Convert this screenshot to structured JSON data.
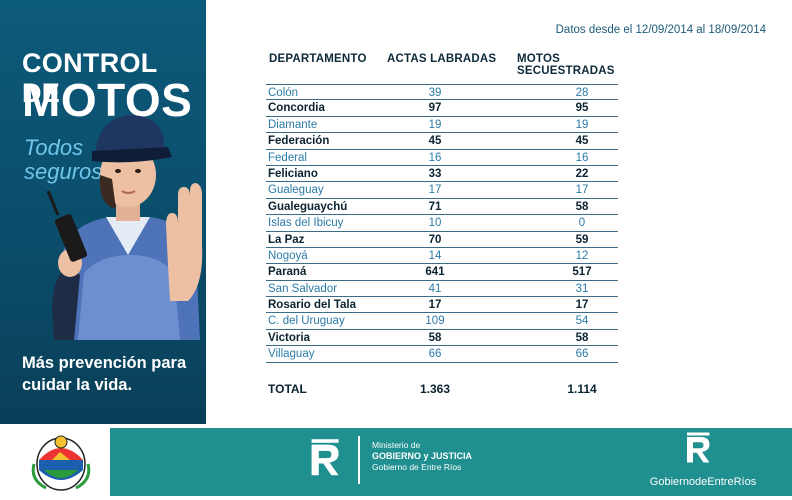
{
  "left_panel": {
    "title_line1": "CONTROL DE",
    "title_line2": "MOTOS",
    "slogan": "Todos seguros",
    "bottom_text": "Más prevención para cuidar la vida."
  },
  "date_range": "Datos desde el 12/09/2014 al 18/09/2014",
  "table": {
    "columns": [
      "DEPARTAMENTO",
      "ACTAS LABRADAS",
      "MOTOS SECUESTRADAS"
    ],
    "rows": [
      {
        "departamento": "Colón",
        "actas": "39",
        "motos": "28"
      },
      {
        "departamento": "Concordia",
        "actas": "97",
        "motos": "95"
      },
      {
        "departamento": "Diamante",
        "actas": "19",
        "motos": "19"
      },
      {
        "departamento": "Federación",
        "actas": "45",
        "motos": "45"
      },
      {
        "departamento": "Federal",
        "actas": "16",
        "motos": "16"
      },
      {
        "departamento": "Feliciano",
        "actas": "33",
        "motos": "22"
      },
      {
        "departamento": "Gualeguay",
        "actas": "17",
        "motos": "17"
      },
      {
        "departamento": "Gualeguaychú",
        "actas": "71",
        "motos": "58"
      },
      {
        "departamento": "Islas del Ibicuy",
        "actas": "10",
        "motos": "0"
      },
      {
        "departamento": "La Paz",
        "actas": "70",
        "motos": "59"
      },
      {
        "departamento": "Nogoyá",
        "actas": "14",
        "motos": "12"
      },
      {
        "departamento": "Paraná",
        "actas": "641",
        "motos": "517"
      },
      {
        "departamento": "San Salvador",
        "actas": "41",
        "motos": "31"
      },
      {
        "departamento": "Rosario del Tala",
        "actas": "17",
        "motos": "17"
      },
      {
        "departamento": "C. del Uruguay",
        "actas": "109",
        "motos": "54"
      },
      {
        "departamento": "Victoria",
        "actas": "58",
        "motos": "58"
      },
      {
        "departamento": "Villaguay",
        "actas": "66",
        "motos": "66"
      }
    ],
    "total": {
      "label": "TOTAL",
      "actas": "1.363",
      "motos": "1.114"
    }
  },
  "footer": {
    "ministry_line1": "Ministerio de",
    "ministry_line2": "GOBIERNO y JUSTICIA",
    "ministry_line3": "Gobierno de Entre Ríos",
    "gob_brand": "GobiernodeEntreRíos",
    "logo_letter": "E"
  },
  "colors": {
    "panel": "#0b4d6b",
    "accent_light": "#6fc6ea",
    "row_alt_text": "#2b7ba7",
    "row_main_text": "#0b2330",
    "footer_band": "#1f8f8f"
  },
  "icons": [
    "officer-illustration",
    "walkie-talkie-icon",
    "provincial-crest-icon",
    "er-logo-icon"
  ]
}
